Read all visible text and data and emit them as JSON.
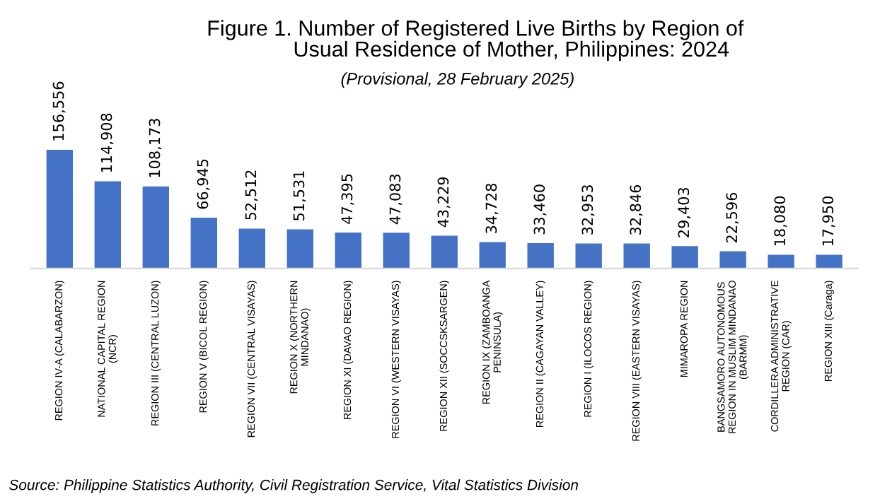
{
  "chart_data": {
    "type": "bar",
    "title": "Figure 1. Number of Registered Live Births by Region of\n            Usual Residence of Mother, Philippines: 2024",
    "subtitle": "(Provisional, 28 February 2025)",
    "categories": [
      "REGION IV-A (CALABARZON)",
      "NATIONAL CAPITAL REGION\n(NCR)",
      "REGION III (CENTRAL LUZON)",
      "REGION V (BICOL REGION)",
      "REGION VII (CENTRAL VISAYAS)",
      "REGION X (NORTHERN\nMINDANAO)",
      "REGION XI (DAVAO REGION)",
      "REGION VI (WESTERN VISAYAS)",
      "REGION XII (SOCCSKSARGEN)",
      "REGION IX (ZAMBOANGA\nPENINSULA)",
      "REGION II (CAGAYAN VALLEY)",
      "REGION I (ILOCOS REGION)",
      "REGION VIII (EASTERN VISAYAS)",
      "MIMAROPA REGION",
      "BANGSAMORO AUTONOMOUS\nREGION IN MUSLIM MINDANAO\n(BARMM)",
      "CORDILLERA ADMINISTRATIVE\nREGION (CAR)",
      "REGION XIII (Caraga)"
    ],
    "values": [
      156556,
      114908,
      108173,
      66945,
      52512,
      51531,
      47395,
      47083,
      43229,
      34728,
      33460,
      32953,
      32846,
      29403,
      22596,
      18080,
      17950
    ],
    "value_labels": [
      "156,556",
      "114,908",
      "108,173",
      "66,945",
      "52,512",
      "51,531",
      "47,395",
      "47,083",
      "43,229",
      "34,728",
      "33,460",
      "32,953",
      "32,846",
      "29,403",
      "22,596",
      "18,080",
      "17,950"
    ],
    "color": "#4472c4",
    "grid": false,
    "legend": false,
    "annotations": [
      "Source: Philippine Statistics Authority, Civil Registration Service, Vital Statistics Division"
    ]
  }
}
